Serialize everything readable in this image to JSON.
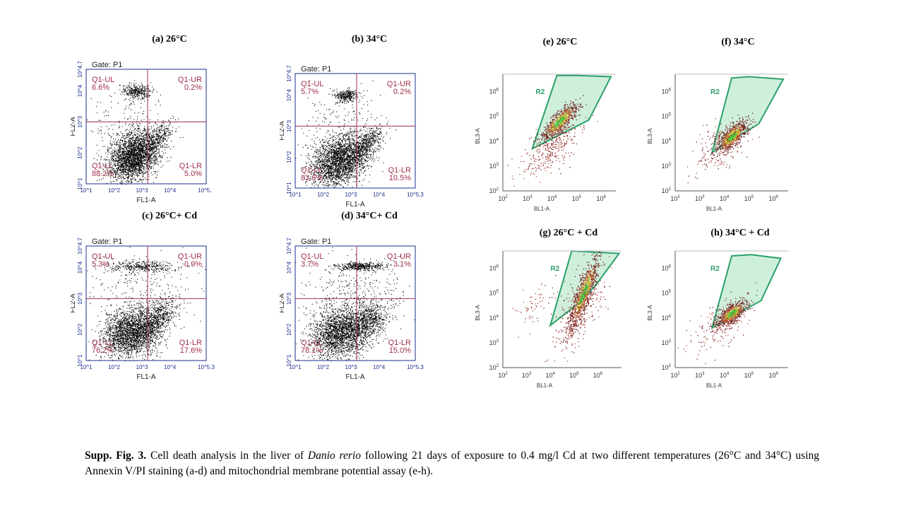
{
  "annexin_panels": [
    {
      "title": "(a) 26°C",
      "gate": "Gate: P1",
      "xlabel": "FL1-A",
      "ylabel": "FL2-A",
      "q": {
        "UL": [
          "Q1-UL",
          "6.6%"
        ],
        "UR": [
          "Q1-UR",
          "0.2%"
        ],
        "LL": [
          "Q1-LL",
          "88.2%"
        ],
        "LR": [
          "Q1-LR",
          "5.0%"
        ]
      }
    },
    {
      "title": "(b) 34°C",
      "gate": "Gate: P1",
      "xlabel": "FL1-A",
      "ylabel": "FL2-A",
      "q": {
        "UL": [
          "Q1-UL",
          "5.7%"
        ],
        "UR": [
          "Q1-UR",
          "0.2%"
        ],
        "LL": [
          "Q1-LL",
          "83.6%"
        ],
        "LR": [
          "Q1-LR",
          "10.5%"
        ]
      }
    },
    {
      "title": "(c) 26°C+ Cd",
      "gate": "Gate: P1",
      "xlabel": "FL1-A",
      "ylabel": "FL2-A",
      "q": {
        "UL": [
          "Q1-UL",
          "5.3%"
        ],
        "UR": [
          "Q1-UR",
          "0.9%"
        ],
        "LL": [
          "Q1-LL",
          "76.2%"
        ],
        "LR": [
          "Q1-LR",
          "17.6%"
        ]
      }
    },
    {
      "title": "(d) 34°C+ Cd",
      "gate": "Gate: P1",
      "xlabel": "FL1-A",
      "ylabel": "FL2-A",
      "q": {
        "UL": [
          "Q1-UL",
          "3.7%"
        ],
        "UR": [
          "Q1-UR",
          "3.1%"
        ],
        "LL": [
          "Q1-LL",
          "78.1%"
        ],
        "LR": [
          "Q1-LR",
          "15.0%"
        ]
      }
    }
  ],
  "annexin_axis": {
    "xticks": [
      "10^1",
      "10^2",
      "10^3",
      "10^4",
      "10^5.3"
    ],
    "yticks": [
      "10^1",
      "10^2",
      "10^3",
      "10^4",
      "10^4.7"
    ]
  },
  "mmp_panels": [
    {
      "title": "(e) 26°C",
      "gate": "R2",
      "xlabel": "BL1-A",
      "ylabel": "BL3-A"
    },
    {
      "title": "(f) 34°C",
      "gate": "R2",
      "xlabel": "BL1-A",
      "ylabel": "BL3-A"
    },
    {
      "title": "(g) 26°C + Cd",
      "gate": "R2",
      "xlabel": "BL1-A",
      "ylabel": "BL3-A"
    },
    {
      "title": "(h) 34°C + Cd",
      "gate": "R2",
      "xlabel": "BL1-A",
      "ylabel": "BL3-A"
    }
  ],
  "mmp_axis": {
    "exponents": [
      2,
      3,
      4,
      5,
      6
    ]
  },
  "colors": {
    "quad_line": "#a0304a",
    "frame": "#1b2f8c",
    "gate": "#2aa06a",
    "gate_fill": "#bfe9d2"
  },
  "caption": {
    "label": "Supp. Fig. 3.",
    "text1": " Cell death analysis in the liver of ",
    "species": "Danio rerio",
    "text2": " following 21 days of exposure to 0.4 mg/l Cd at two different temperatures (26°C and 34°C) using Annexin V/PI staining (a-d) and mitochondrial membrane potential assay (e-h)."
  }
}
